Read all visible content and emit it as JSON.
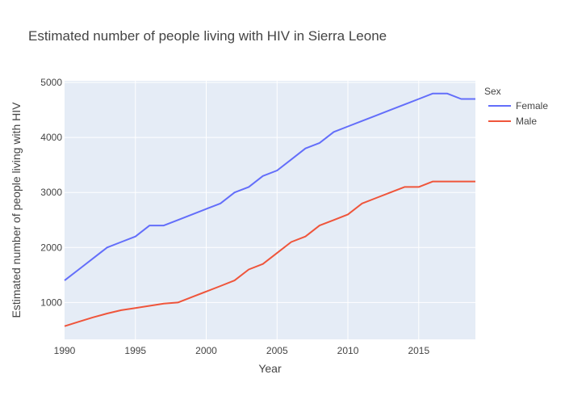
{
  "chart_data": {
    "type": "line",
    "title": "Estimated number of people living with HIV in Sierra Leone",
    "xlabel": "Year",
    "ylabel": "Estimated number of people living with HIV",
    "xlim": [
      1990,
      2019
    ],
    "ylim": [
      330,
      5030
    ],
    "x_ticks": [
      1990,
      1995,
      2000,
      2005,
      2010,
      2015
    ],
    "y_ticks": [
      1000,
      2000,
      3000,
      4000,
      5000
    ],
    "grid": true,
    "legend_title": "Sex",
    "legend_position": "top-right",
    "x": [
      1990,
      1991,
      1992,
      1993,
      1994,
      1995,
      1996,
      1997,
      1998,
      1999,
      2000,
      2001,
      2002,
      2003,
      2004,
      2005,
      2006,
      2007,
      2008,
      2009,
      2010,
      2011,
      2012,
      2013,
      2014,
      2015,
      2016,
      2017,
      2018,
      2019
    ],
    "series": [
      {
        "name": "Female",
        "color": "#636efa",
        "values": [
          1400,
          1600,
          1800,
          2000,
          2100,
          2200,
          2400,
          2400,
          2500,
          2600,
          2700,
          2800,
          3000,
          3100,
          3300,
          3400,
          3600,
          3800,
          3900,
          4100,
          4200,
          4300,
          4400,
          4500,
          4600,
          4700,
          4800,
          4800,
          4700,
          4700
        ]
      },
      {
        "name": "Male",
        "color": "#ef553b",
        "values": [
          570,
          650,
          730,
          800,
          860,
          900,
          940,
          980,
          1000,
          1100,
          1200,
          1300,
          1400,
          1600,
          1700,
          1900,
          2100,
          2200,
          2400,
          2500,
          2600,
          2800,
          2900,
          3000,
          3100,
          3100,
          3200,
          3200,
          3200,
          3200
        ]
      }
    ]
  }
}
